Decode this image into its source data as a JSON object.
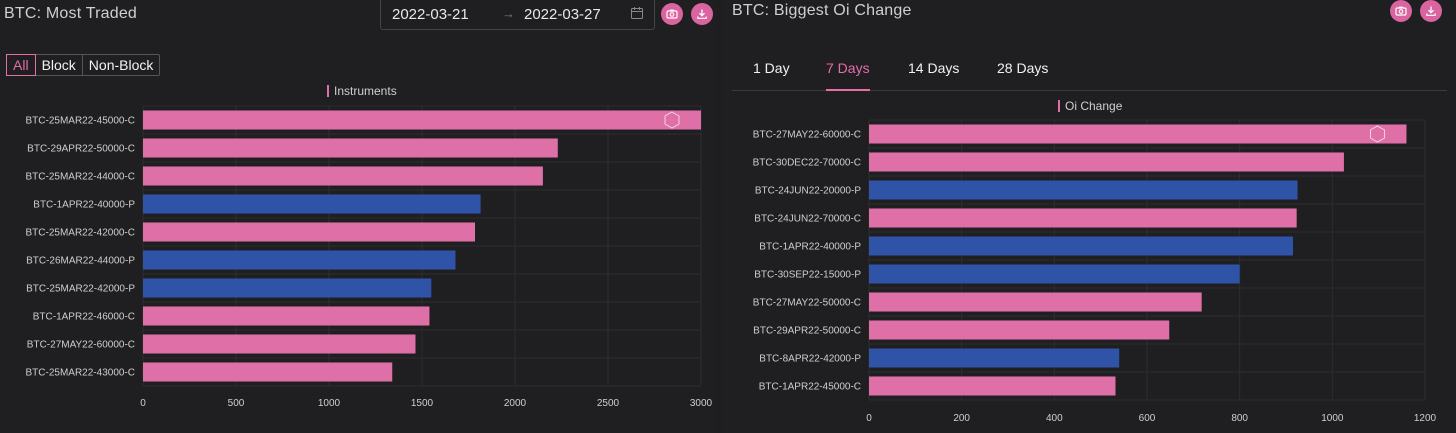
{
  "left": {
    "title": "BTC: Most Traded",
    "date_from": "2022-03-21",
    "date_to": "2022-03-27",
    "filters": [
      "All",
      "Block",
      "Non-Block"
    ],
    "active_filter": "All"
  },
  "right": {
    "title": "BTC: Biggest Oi Change",
    "tabs": [
      "1 Day",
      "7 Days",
      "14 Days",
      "28 Days"
    ],
    "active_tab": "7 Days"
  },
  "colors": {
    "pink": "#df6fa7",
    "blue": "#2f53a6",
    "accent": "#e56da8"
  },
  "chart_data": [
    {
      "type": "bar",
      "orientation": "horizontal",
      "legend": "Instruments",
      "categories": [
        "BTC-25MAR22-45000-C",
        "BTC-29APR22-50000-C",
        "BTC-25MAR22-44000-C",
        "BTC-1APR22-40000-P",
        "BTC-25MAR22-42000-C",
        "BTC-26MAR22-44000-P",
        "BTC-25MAR22-42000-P",
        "BTC-1APR22-46000-C",
        "BTC-27MAY22-60000-C",
        "BTC-25MAR22-43000-C"
      ],
      "values": [
        3000,
        2230,
        2150,
        1815,
        1785,
        1680,
        1550,
        1540,
        1465,
        1340
      ],
      "xlim": [
        0,
        3000
      ],
      "xticks": [
        0,
        500,
        1000,
        1500,
        2000,
        2500,
        3000
      ]
    },
    {
      "type": "bar",
      "orientation": "horizontal",
      "legend": "Oi Change",
      "categories": [
        "BTC-27MAY22-60000-C",
        "BTC-30DEC22-70000-C",
        "BTC-24JUN22-20000-P",
        "BTC-24JUN22-70000-C",
        "BTC-1APR22-40000-P",
        "BTC-30SEP22-15000-P",
        "BTC-27MAY22-50000-C",
        "BTC-29APR22-50000-C",
        "BTC-8APR22-42000-P",
        "BTC-1APR22-45000-C"
      ],
      "values": [
        1160,
        1025,
        925,
        923,
        915,
        800,
        718,
        648,
        540,
        532
      ],
      "xlim": [
        0,
        1200
      ],
      "xticks": [
        0,
        200,
        400,
        600,
        800,
        1000,
        1200
      ]
    }
  ]
}
